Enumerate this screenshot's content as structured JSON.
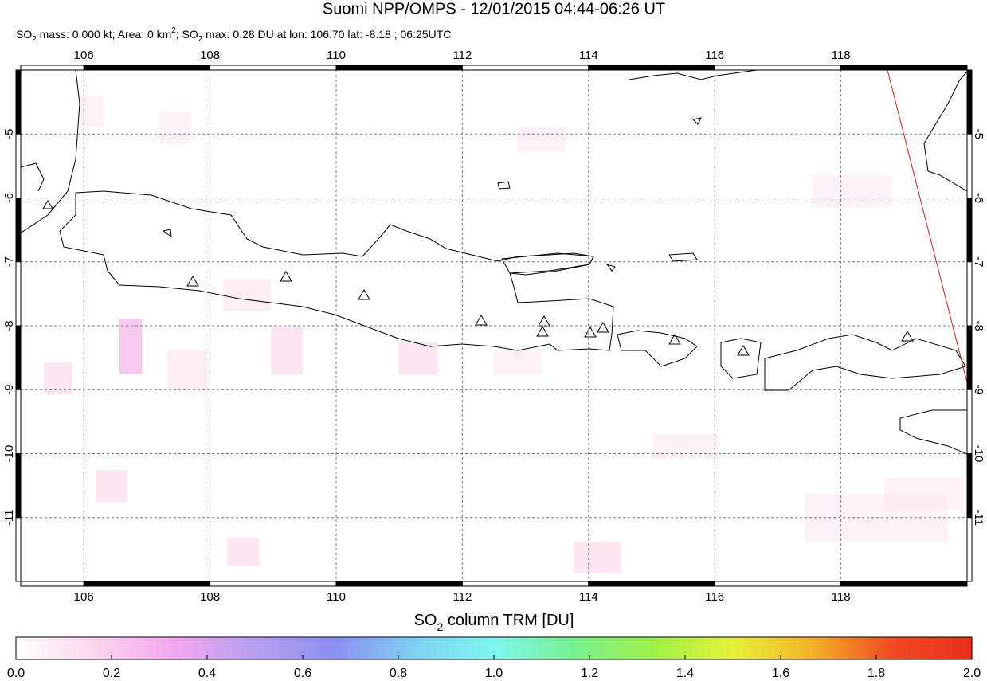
{
  "title": "Suomi NPP/OMPS - 12/01/2015 04:44-06:26 UT",
  "subtitle": [
    {
      "text": "SO"
    },
    {
      "text": "2",
      "sub": true
    },
    {
      "text": " mass: 0.000 kt; Area: 0 km"
    },
    {
      "text": "2",
      "sup": true
    },
    {
      "text": "; SO"
    },
    {
      "text": "2",
      "sub": true
    },
    {
      "text": " max: 0.28 DU at lon: 106.70 lat: -8.18 ; 06:25UTC"
    }
  ],
  "chart_data": {
    "type": "map",
    "xlim": [
      105,
      120
    ],
    "ylim": [
      -12,
      -4
    ],
    "xticks": [
      106,
      108,
      110,
      112,
      114,
      116,
      118
    ],
    "yticks": [
      -5,
      -6,
      -7,
      -8,
      -9,
      -10,
      -11
    ],
    "grid": true
  },
  "colorbar": {
    "label": [
      {
        "text": "SO"
      },
      {
        "text": "2",
        "sub": true
      },
      {
        "text": " column TRM [DU]"
      }
    ],
    "lim": [
      0,
      2
    ],
    "ticks": [
      {
        "value": 0,
        "label": "0.0"
      },
      0.2,
      0.4,
      0.6,
      0.8,
      {
        "value": 1,
        "label": "1.0"
      },
      1.2,
      1.4,
      1.6,
      1.8,
      {
        "value": 2,
        "label": "2.0"
      }
    ],
    "colors": [
      "#ffffff",
      "#fbd6ec",
      "#f3a6f0",
      "#b7a0f0",
      "#8c8ff2",
      "#7fd0f4",
      "#7ff7ee",
      "#78f090",
      "#9ef04a",
      "#e6f03a",
      "#f4b22a",
      "#f04a22",
      "#e8301c"
    ]
  }
}
